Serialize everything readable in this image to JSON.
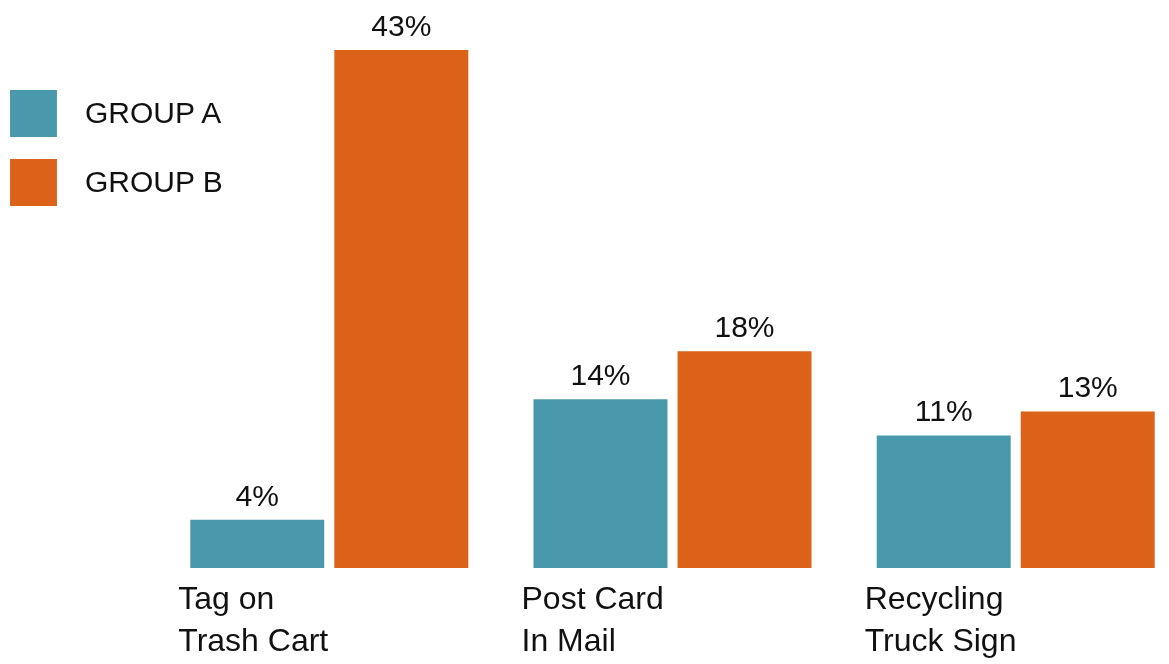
{
  "chart_data": {
    "type": "bar",
    "categories": [
      "Tag on Trash Cart",
      "Post Card In Mail",
      "Recycling Truck Sign"
    ],
    "series": [
      {
        "name": "GROUP A",
        "color": "#4a98ab",
        "values": [
          4,
          14,
          11
        ],
        "value_labels": [
          "4%",
          "14%",
          "11%"
        ]
      },
      {
        "name": "GROUP B",
        "color": "#dc6119",
        "values": [
          43,
          18,
          13
        ],
        "value_labels": [
          "43%",
          "18%",
          "13%"
        ]
      }
    ],
    "legend": "top left"
  }
}
